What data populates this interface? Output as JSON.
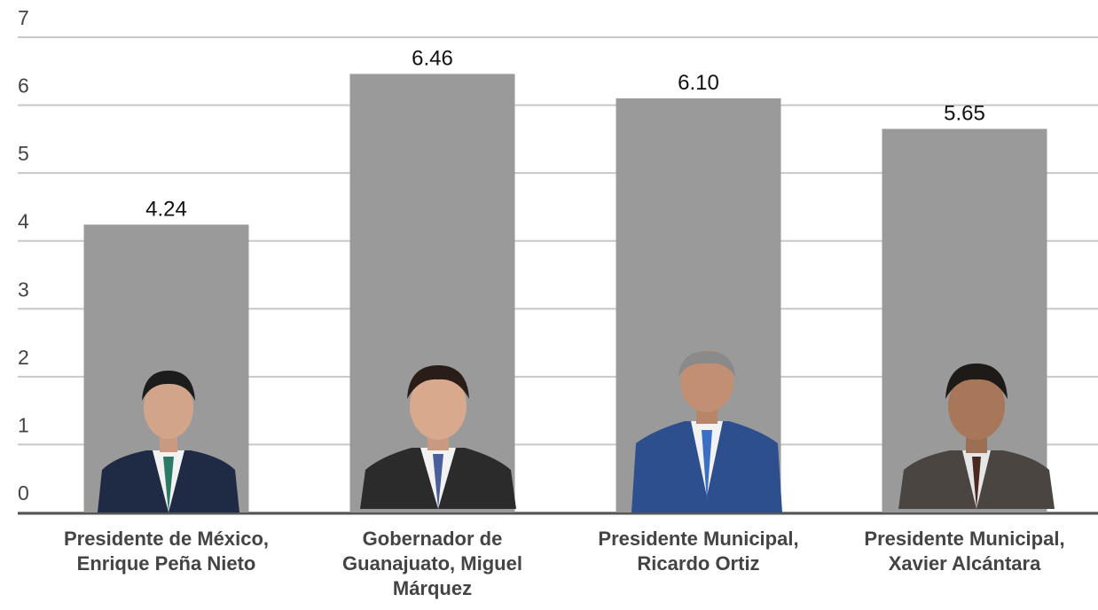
{
  "chart_data": {
    "type": "bar",
    "categories": [
      "Presidente de México, Enrique Peña Nieto",
      "Gobernador de Guanajuato, Miguel Márquez",
      "Presidente Municipal, Ricardo Ortiz",
      "Presidente Municipal, Xavier Alcántara"
    ],
    "values": [
      4.24,
      6.46,
      6.1,
      5.65
    ],
    "value_labels": [
      "4.24",
      "6.46",
      "6.10",
      "5.65"
    ],
    "color": "#9a9a9a",
    "ylim": [
      0,
      7
    ],
    "yticks": [
      0,
      1,
      2,
      3,
      4,
      5,
      6,
      7
    ],
    "grid": true
  }
}
